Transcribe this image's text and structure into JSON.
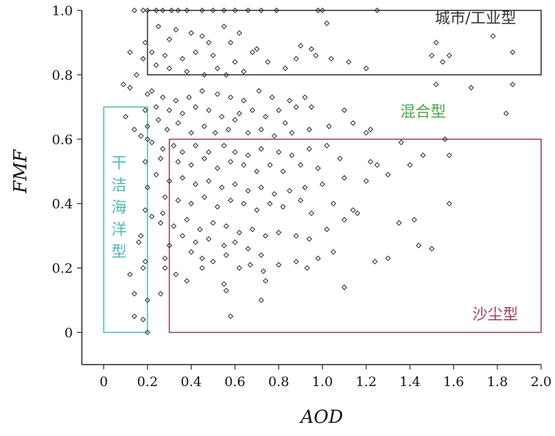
{
  "chart_data": {
    "type": "scatter",
    "xlabel": "AOD",
    "ylabel": "FMF",
    "xlim": [
      -0.1,
      2.0
    ],
    "ylim": [
      -0.1,
      1.0
    ],
    "xticks": [
      "0",
      "0.2",
      "0.4",
      "0.6",
      "0.8",
      "1.0",
      "1.2",
      "1.4",
      "1.6",
      "1.8",
      "2.0"
    ],
    "xtick_values": [
      0,
      0.2,
      0.4,
      0.6,
      0.8,
      1.0,
      1.2,
      1.4,
      1.6,
      1.8,
      2.0
    ],
    "yticks": [
      "0",
      "0.2",
      "0.4",
      "0.6",
      "0.8",
      "1.0"
    ],
    "ytick_values": [
      0,
      0.2,
      0.4,
      0.6,
      0.8,
      1.0
    ],
    "marker": "diamond",
    "regions": [
      {
        "label": "城市/工业型",
        "x0": 0.2,
        "x1": 2.0,
        "y0": 0.8,
        "y1": 1.0,
        "color": "#333333",
        "label_x": 1.7,
        "label_y": 0.96
      },
      {
        "label": "混合型",
        "x0": null,
        "x1": null,
        "y0": null,
        "y1": null,
        "color": "#4aa84a",
        "label_x": 1.46,
        "label_y": 0.67
      },
      {
        "label": "沙尘型",
        "x0": 0.3,
        "x1": 2.0,
        "y0": 0.0,
        "y1": 0.6,
        "color": "#a0405a",
        "label_x": 1.79,
        "label_y": 0.04
      },
      {
        "label": "干洁海洋型",
        "x0": 0.0,
        "x1": 0.2,
        "y0": 0.0,
        "y1": 0.7,
        "color": "#4fb8b8",
        "label_x": 0.07,
        "label_y": 0.51,
        "vertical": true
      }
    ],
    "points": [
      [
        0.14,
        1.0
      ],
      [
        0.18,
        1.0
      ],
      [
        0.2,
        1.0
      ],
      [
        0.24,
        1.0
      ],
      [
        0.27,
        1.0
      ],
      [
        0.31,
        1.0
      ],
      [
        0.34,
        1.0
      ],
      [
        0.38,
        1.0
      ],
      [
        0.45,
        1.0
      ],
      [
        0.5,
        1.0
      ],
      [
        0.55,
        1.0
      ],
      [
        0.6,
        1.0
      ],
      [
        0.66,
        1.0
      ],
      [
        0.72,
        1.0
      ],
      [
        0.79,
        1.0
      ],
      [
        0.98,
        1.0
      ],
      [
        1.25,
        1.0
      ],
      [
        1.0,
        1.0
      ],
      [
        0.25,
        0.95
      ],
      [
        0.33,
        0.94
      ],
      [
        0.4,
        0.93
      ],
      [
        0.45,
        0.92
      ],
      [
        0.55,
        0.95
      ],
      [
        0.62,
        0.93
      ],
      [
        1.02,
        0.96
      ],
      [
        0.3,
        0.91
      ],
      [
        0.48,
        0.9
      ],
      [
        0.58,
        0.9
      ],
      [
        0.7,
        0.88
      ],
      [
        0.9,
        0.89
      ],
      [
        0.95,
        0.88
      ],
      [
        1.04,
        0.85
      ],
      [
        1.12,
        0.84
      ],
      [
        1.2,
        0.82
      ],
      [
        0.68,
        0.87
      ],
      [
        0.22,
        0.87
      ],
      [
        0.28,
        0.86
      ],
      [
        0.36,
        0.85
      ],
      [
        0.42,
        0.87
      ],
      [
        0.5,
        0.86
      ],
      [
        0.6,
        0.84
      ],
      [
        0.75,
        0.84
      ],
      [
        0.83,
        0.82
      ],
      [
        0.88,
        0.85
      ],
      [
        0.97,
        0.86
      ],
      [
        0.24,
        0.83
      ],
      [
        0.3,
        0.82
      ],
      [
        0.38,
        0.81
      ],
      [
        0.46,
        0.8
      ],
      [
        0.52,
        0.82
      ],
      [
        0.56,
        0.8
      ],
      [
        0.64,
        0.81
      ],
      [
        1.5,
        0.86
      ],
      [
        1.55,
        0.84
      ],
      [
        1.58,
        0.86
      ],
      [
        1.52,
        0.9
      ],
      [
        1.78,
        0.92
      ],
      [
        1.87,
        0.87
      ],
      [
        1.52,
        0.77
      ],
      [
        1.68,
        0.76
      ],
      [
        1.87,
        0.77
      ],
      [
        1.84,
        0.68
      ],
      [
        1.14,
        0.65
      ],
      [
        1.2,
        0.62
      ],
      [
        1.22,
        0.63
      ],
      [
        1.36,
        0.59
      ],
      [
        1.56,
        0.6
      ],
      [
        1.58,
        0.55
      ],
      [
        1.46,
        0.55
      ],
      [
        1.4,
        0.52
      ],
      [
        0.12,
        0.87
      ],
      [
        0.15,
        0.8
      ],
      [
        0.09,
        0.77
      ],
      [
        0.18,
        0.85
      ],
      [
        0.19,
        0.9
      ],
      [
        0.22,
        0.75
      ],
      [
        0.27,
        0.73
      ],
      [
        0.33,
        0.72
      ],
      [
        0.39,
        0.73
      ],
      [
        0.45,
        0.75
      ],
      [
        0.52,
        0.74
      ],
      [
        0.58,
        0.73
      ],
      [
        0.64,
        0.72
      ],
      [
        0.71,
        0.75
      ],
      [
        0.77,
        0.73
      ],
      [
        0.85,
        0.72
      ],
      [
        0.92,
        0.73
      ],
      [
        0.24,
        0.7
      ],
      [
        0.3,
        0.69
      ],
      [
        0.36,
        0.68
      ],
      [
        0.42,
        0.7
      ],
      [
        0.48,
        0.69
      ],
      [
        0.54,
        0.67
      ],
      [
        0.62,
        0.68
      ],
      [
        0.68,
        0.69
      ],
      [
        0.74,
        0.67
      ],
      [
        0.8,
        0.69
      ],
      [
        0.88,
        0.7
      ],
      [
        0.95,
        0.7
      ],
      [
        1.1,
        0.69
      ],
      [
        0.83,
        0.65
      ],
      [
        0.2,
        0.64
      ],
      [
        0.25,
        0.66
      ],
      [
        0.29,
        0.63
      ],
      [
        0.34,
        0.65
      ],
      [
        0.4,
        0.62
      ],
      [
        0.46,
        0.64
      ],
      [
        0.51,
        0.62
      ],
      [
        0.57,
        0.63
      ],
      [
        0.6,
        0.66
      ],
      [
        0.66,
        0.62
      ],
      [
        0.72,
        0.63
      ],
      [
        0.78,
        0.61
      ],
      [
        0.86,
        0.62
      ],
      [
        0.94,
        0.63
      ],
      [
        1.03,
        0.64
      ],
      [
        0.14,
        0.63
      ],
      [
        0.17,
        0.61
      ],
      [
        0.1,
        0.67
      ],
      [
        0.22,
        0.59
      ],
      [
        0.27,
        0.57
      ],
      [
        0.32,
        0.58
      ],
      [
        0.36,
        0.56
      ],
      [
        0.42,
        0.58
      ],
      [
        0.48,
        0.56
      ],
      [
        0.55,
        0.58
      ],
      [
        0.6,
        0.56
      ],
      [
        0.66,
        0.55
      ],
      [
        0.72,
        0.57
      ],
      [
        0.8,
        0.56
      ],
      [
        0.86,
        0.55
      ],
      [
        0.94,
        0.57
      ],
      [
        1.02,
        0.58
      ],
      [
        0.26,
        0.54
      ],
      [
        0.34,
        0.53
      ],
      [
        0.4,
        0.52
      ],
      [
        0.46,
        0.54
      ],
      [
        0.52,
        0.51
      ],
      [
        0.58,
        0.53
      ],
      [
        0.64,
        0.52
      ],
      [
        0.7,
        0.5
      ],
      [
        0.76,
        0.52
      ],
      [
        0.82,
        0.5
      ],
      [
        0.9,
        0.52
      ],
      [
        0.98,
        0.51
      ],
      [
        1.08,
        0.54
      ],
      [
        1.22,
        0.53
      ],
      [
        1.25,
        0.52
      ],
      [
        0.24,
        0.49
      ],
      [
        0.3,
        0.47
      ],
      [
        0.36,
        0.48
      ],
      [
        0.42,
        0.46
      ],
      [
        0.48,
        0.47
      ],
      [
        0.54,
        0.45
      ],
      [
        0.6,
        0.46
      ],
      [
        0.66,
        0.44
      ],
      [
        0.72,
        0.45
      ],
      [
        0.78,
        0.43
      ],
      [
        0.85,
        0.44
      ],
      [
        0.92,
        0.45
      ],
      [
        1.0,
        0.46
      ],
      [
        1.1,
        0.48
      ],
      [
        1.2,
        0.47
      ],
      [
        1.3,
        0.49
      ],
      [
        0.28,
        0.42
      ],
      [
        0.34,
        0.41
      ],
      [
        0.4,
        0.4
      ],
      [
        0.46,
        0.42
      ],
      [
        0.52,
        0.39
      ],
      [
        0.58,
        0.41
      ],
      [
        0.64,
        0.4
      ],
      [
        0.7,
        0.38
      ],
      [
        0.76,
        0.4
      ],
      [
        0.82,
        0.39
      ],
      [
        0.9,
        0.41
      ],
      [
        0.95,
        0.37
      ],
      [
        1.05,
        0.4
      ],
      [
        1.14,
        0.38
      ],
      [
        1.16,
        0.37
      ],
      [
        1.58,
        0.4
      ],
      [
        0.22,
        0.36
      ],
      [
        0.26,
        0.34
      ],
      [
        0.32,
        0.33
      ],
      [
        0.38,
        0.35
      ],
      [
        0.44,
        0.32
      ],
      [
        0.5,
        0.34
      ],
      [
        0.56,
        0.33
      ],
      [
        0.62,
        0.31
      ],
      [
        0.68,
        0.32
      ],
      [
        0.74,
        0.3
      ],
      [
        0.8,
        0.31
      ],
      [
        0.88,
        0.3
      ],
      [
        0.94,
        0.29
      ],
      [
        1.02,
        0.32
      ],
      [
        1.1,
        0.35
      ],
      [
        0.36,
        0.3
      ],
      [
        0.42,
        0.28
      ],
      [
        0.48,
        0.29
      ],
      [
        0.55,
        0.27
      ],
      [
        0.6,
        0.28
      ],
      [
        0.66,
        0.26
      ],
      [
        0.72,
        0.24
      ],
      [
        0.4,
        0.25
      ],
      [
        0.45,
        0.23
      ],
      [
        0.5,
        0.22
      ],
      [
        0.56,
        0.24
      ],
      [
        0.62,
        0.2
      ],
      [
        0.67,
        0.21
      ],
      [
        0.73,
        0.19
      ],
      [
        0.8,
        0.21
      ],
      [
        0.88,
        0.22
      ],
      [
        0.93,
        0.2
      ],
      [
        0.98,
        0.23
      ],
      [
        1.05,
        0.25
      ],
      [
        1.24,
        0.22
      ],
      [
        1.3,
        0.23
      ],
      [
        1.35,
        0.34
      ],
      [
        1.42,
        0.35
      ],
      [
        1.44,
        0.27
      ],
      [
        1.5,
        0.26
      ],
      [
        0.28,
        0.2
      ],
      [
        0.33,
        0.18
      ],
      [
        0.38,
        0.16
      ],
      [
        0.45,
        0.2
      ],
      [
        0.55,
        0.15
      ],
      [
        0.56,
        0.13
      ],
      [
        0.72,
        0.1
      ],
      [
        0.74,
        0.16
      ],
      [
        0.58,
        0.05
      ],
      [
        1.1,
        0.14
      ],
      [
        0.16,
        0.28
      ],
      [
        0.18,
        0.2
      ],
      [
        0.12,
        0.18
      ],
      [
        0.2,
        0.1
      ],
      [
        0.14,
        0.12
      ],
      [
        0.14,
        0.05
      ],
      [
        0.18,
        0.04
      ],
      [
        0.2,
        0.0
      ],
      [
        0.19,
        0.22
      ],
      [
        0.17,
        0.3
      ],
      [
        0.19,
        0.38
      ],
      [
        0.2,
        0.45
      ],
      [
        0.19,
        0.53
      ],
      [
        0.2,
        0.6
      ],
      [
        0.19,
        0.69
      ],
      [
        0.12,
        0.76
      ],
      [
        0.2,
        0.74
      ],
      [
        0.26,
        0.12
      ],
      [
        0.28,
        0.23
      ],
      [
        0.3,
        0.27
      ],
      [
        0.27,
        0.37
      ]
    ]
  }
}
